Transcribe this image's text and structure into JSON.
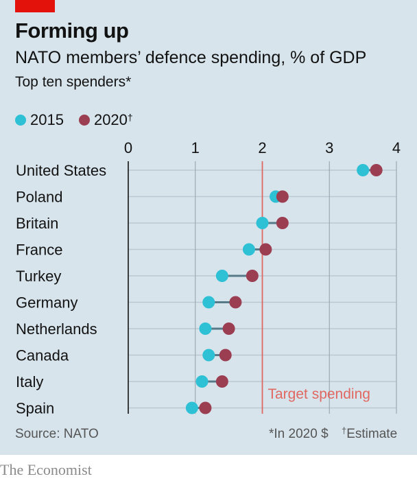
{
  "header": {
    "title": "Forming up",
    "subtitle": "NATO members’ defence spending, % of GDP",
    "note": "Top ten spenders*"
  },
  "legend": {
    "items": [
      {
        "label": "2015",
        "sup": "",
        "color": "#2ec0d4"
      },
      {
        "label": "2020",
        "sup": "†",
        "color": "#9c3e52"
      }
    ]
  },
  "chart_data": {
    "type": "dot",
    "categories": [
      "United States",
      "Poland",
      "Britain",
      "France",
      "Turkey",
      "Germany",
      "Netherlands",
      "Canada",
      "Italy",
      "Spain"
    ],
    "series": [
      {
        "name": "2015",
        "values": [
          3.5,
          2.2,
          2.0,
          1.8,
          1.4,
          1.2,
          1.15,
          1.2,
          1.1,
          0.95
        ]
      },
      {
        "name": "2020",
        "values": [
          3.7,
          2.3,
          2.3,
          2.05,
          1.85,
          1.6,
          1.5,
          1.45,
          1.4,
          1.15
        ]
      }
    ],
    "xlim": [
      0,
      4
    ],
    "xticks": [
      "0",
      "1",
      "2",
      "3",
      "4"
    ],
    "target": {
      "value": 2,
      "label": "Target spending",
      "color": "#e06860"
    },
    "colors": {
      "2015": "#2ec0d4",
      "2020": "#9c3e52",
      "connector": "#567a88",
      "grid": "#9aaab4",
      "rowline": "#b9c8d1"
    }
  },
  "footer": {
    "source": "Source: NATO",
    "footnote1": "*In 2020 $",
    "footnote2_sup": "†",
    "footnote2": "Estimate",
    "brand": "The Economist"
  }
}
